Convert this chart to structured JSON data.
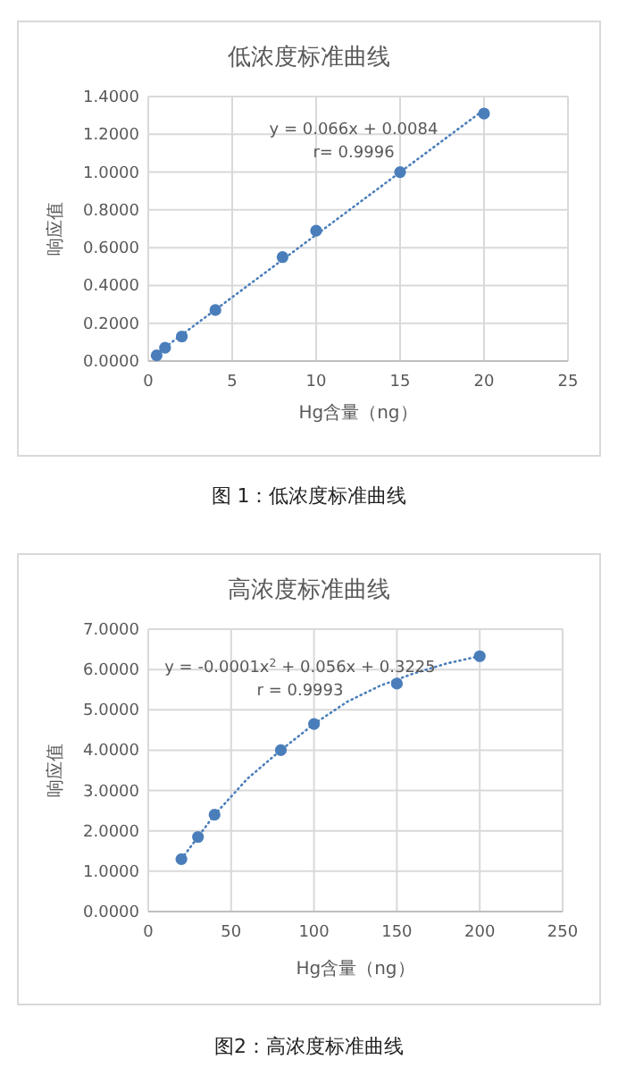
{
  "chart_data": [
    {
      "type": "scatter",
      "title": "低浓度标准曲线",
      "xlabel": "Hg含量（ng）",
      "ylabel": "响应值",
      "xlim": [
        0,
        25
      ],
      "xticks": [
        0,
        5,
        10,
        15,
        20,
        25
      ],
      "ylim": [
        0,
        1.4
      ],
      "yticks": [
        {
          "value": 0,
          "label": "0.0000"
        },
        {
          "value": 0.2,
          "label": "0.2000"
        },
        {
          "value": 0.4,
          "label": "0.4000"
        },
        {
          "value": 0.6,
          "label": "0.6000"
        },
        {
          "value": 0.8,
          "label": "0.8000"
        },
        {
          "value": 1.0,
          "label": "1.0000"
        },
        {
          "value": 1.2,
          "label": "1.2000"
        },
        {
          "value": 1.4,
          "label": "1.4000"
        }
      ],
      "grid": true,
      "marker": "circle",
      "series": [
        {
          "type": "scatter",
          "color": "#4a7ebb",
          "x": [
            0.5,
            1,
            2,
            4,
            8,
            10,
            15,
            20
          ],
          "values": [
            0.03,
            0.07,
            0.13,
            0.27,
            0.55,
            0.69,
            1.0,
            1.31
          ]
        },
        {
          "type": "line",
          "color": "#4a7ebb",
          "line_style": "dotted",
          "marker": "none",
          "x": [
            0.5,
            20
          ],
          "values": [
            0.04,
            1.33
          ]
        }
      ],
      "annotations": [
        "y = 0.066x + 0.0084",
        "r= 0.9996",
        "图 1：低浓度标准曲线"
      ]
    },
    {
      "type": "scatter",
      "title": "高浓度标准曲线",
      "xlabel": "Hg含量（ng）",
      "ylabel": "响应值",
      "xlim": [
        0,
        250
      ],
      "xticks": [
        0,
        50,
        100,
        150,
        200,
        250
      ],
      "ylim": [
        0,
        7
      ],
      "yticks": [
        {
          "value": 0,
          "label": "0.0000"
        },
        {
          "value": 1,
          "label": "1.0000"
        },
        {
          "value": 2,
          "label": "2.0000"
        },
        {
          "value": 3,
          "label": "3.0000"
        },
        {
          "value": 4,
          "label": "4.0000"
        },
        {
          "value": 5,
          "label": "5.0000"
        },
        {
          "value": 6,
          "label": "6.0000"
        },
        {
          "value": 7,
          "label": "7.0000"
        }
      ],
      "grid": true,
      "marker": "circle",
      "series": [
        {
          "type": "scatter",
          "color": "#4a7ebb",
          "x": [
            20,
            30,
            40,
            80,
            100,
            150,
            200
          ],
          "values": [
            1.3,
            1.85,
            2.4,
            4.0,
            4.65,
            5.65,
            6.33
          ]
        },
        {
          "type": "line",
          "color": "#4a7ebb",
          "line_style": "dotted",
          "marker": "none",
          "x": [
            20,
            40,
            60,
            80,
            100,
            120,
            140,
            160,
            180,
            200
          ],
          "values": [
            1.3,
            2.4,
            3.3,
            4.0,
            4.65,
            5.2,
            5.6,
            5.9,
            6.15,
            6.33
          ]
        }
      ],
      "annotations": [
        "y = -0.0001x$^{2}$ + 0.056x + 0.3225",
        "r = 0.9993",
        "图2：高浓度标准曲线"
      ]
    }
  ]
}
